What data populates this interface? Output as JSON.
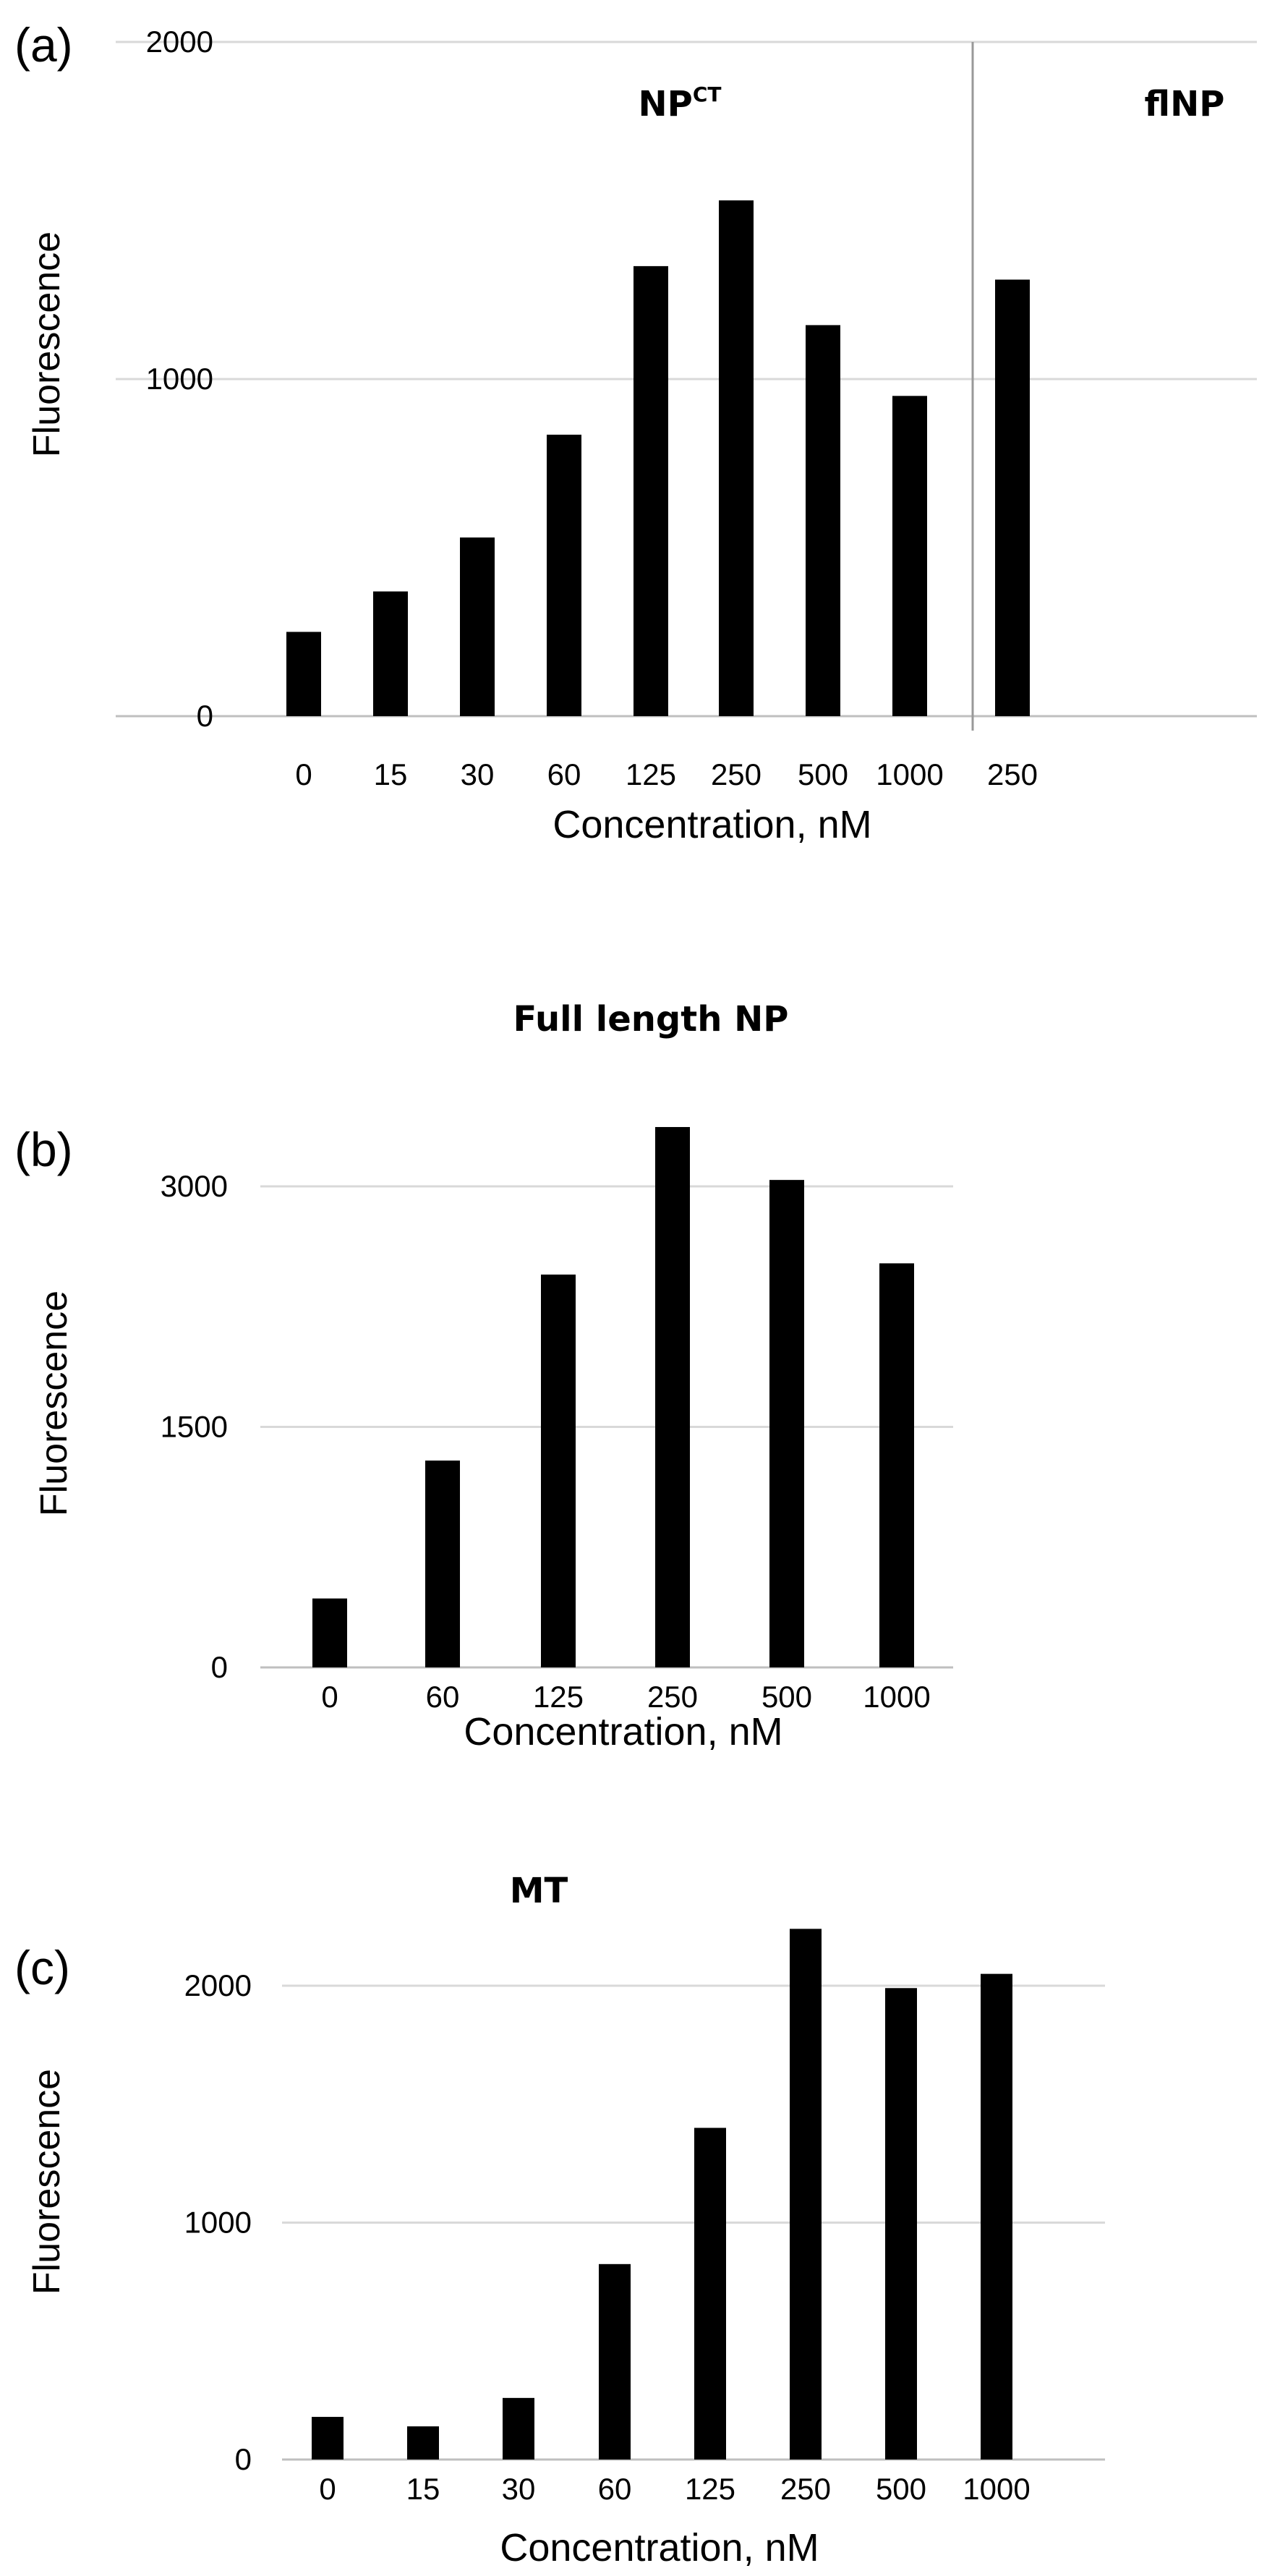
{
  "chart_data": [
    {
      "type": "bar",
      "panel_label": "(a)",
      "title": "",
      "group_labels": [
        {
          "base": "NP",
          "sup": "CT"
        },
        {
          "base": "flNP",
          "sup": ""
        }
      ],
      "categories": [
        "0",
        "15",
        "30",
        "60",
        "125",
        "250",
        "500",
        "1000",
        "250"
      ],
      "values": [
        250,
        370,
        530,
        835,
        1335,
        1530,
        1160,
        950,
        1295
      ],
      "xlabel": "Concentration,  nM",
      "ylabel": "Fluorescence",
      "ylim": [
        0,
        2000
      ],
      "yticks": [
        "0",
        "1000",
        "2000"
      ],
      "grid": true,
      "group_divider_after_index": 7,
      "bar_color": "#000000",
      "grid_color": "#d9d9d9"
    },
    {
      "type": "bar",
      "panel_label": "(b)",
      "title": "Full length NP",
      "categories": [
        "0",
        "60",
        "125",
        "250",
        "500",
        "1000"
      ],
      "values": [
        430,
        1290,
        2450,
        3370,
        3040,
        2520
      ],
      "xlabel": "Concentration,  nM",
      "ylabel": "Fluorescence",
      "ylim": [
        0,
        3000
      ],
      "yticks": [
        "0",
        "1500",
        "3000"
      ],
      "grid": true,
      "bar_color": "#000000",
      "grid_color": "#d9d9d9"
    },
    {
      "type": "bar",
      "panel_label": "(c)",
      "title": "MT",
      "categories": [
        "0",
        "15",
        "30",
        "60",
        "125",
        "250",
        "500",
        "1000"
      ],
      "values": [
        180,
        140,
        260,
        825,
        1400,
        2240,
        1990,
        2050
      ],
      "xlabel": "Concentration,  nM",
      "ylabel": "Fluorescence",
      "ylim": [
        0,
        2000
      ],
      "yticks": [
        "0",
        "1000",
        "2000"
      ],
      "grid": true,
      "bar_color": "#000000",
      "grid_color": "#d9d9d9"
    }
  ]
}
